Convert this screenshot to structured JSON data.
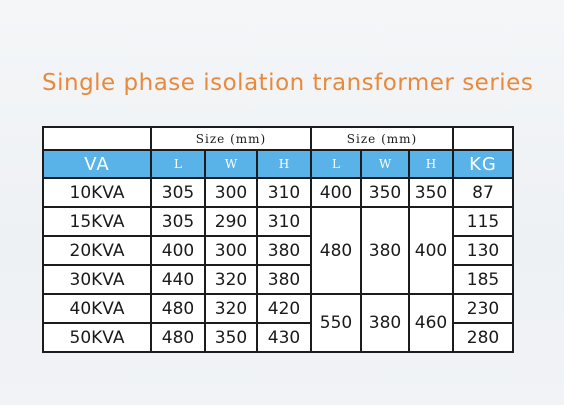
{
  "title": "Single phase isolation transformer series",
  "table": {
    "group_headers": {
      "size_1": "Size (mm)",
      "size_2": "Size (mm)"
    },
    "columns": {
      "va": "VA",
      "l1": "L",
      "w1": "W",
      "h1": "H",
      "l2": "L",
      "w2": "W",
      "h2": "H",
      "kg": "KG"
    },
    "rows": [
      {
        "va": "10KVA",
        "l": "305",
        "w": "300",
        "h": "310",
        "kg": "87"
      },
      {
        "va": "15KVA",
        "l": "305",
        "w": "290",
        "h": "310",
        "kg": "115"
      },
      {
        "va": "20KVA",
        "l": "400",
        "w": "300",
        "h": "380",
        "kg": "130"
      },
      {
        "va": "30KVA",
        "l": "440",
        "w": "320",
        "h": "380",
        "kg": "185"
      },
      {
        "va": "40KVA",
        "l": "480",
        "w": "320",
        "h": "420",
        "kg": "230"
      },
      {
        "va": "50KVA",
        "l": "480",
        "w": "350",
        "h": "430",
        "kg": "280"
      }
    ],
    "package_sizes": [
      {
        "l": "400",
        "w": "350",
        "h": "350"
      },
      {
        "l": "480",
        "w": "380",
        "h": "400"
      },
      {
        "l": "550",
        "w": "380",
        "h": "460"
      }
    ]
  },
  "colors": {
    "title": "#e88a3c",
    "header_bg": "#59b3e9",
    "border": "#1c1c1c"
  }
}
